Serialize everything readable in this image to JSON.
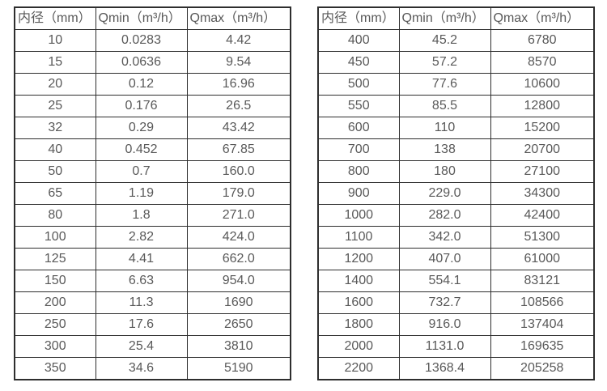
{
  "page": {
    "background_color": "#ffffff",
    "border_color": "#2e2e2e",
    "text_color": "#595959"
  },
  "column_semantics": [
    "diameter",
    "qmin",
    "qmax"
  ],
  "tables": [
    {
      "name": "flow-table-small-diameters",
      "headers": [
        "内径（mm）",
        "Qmin（m³/h）",
        "Qmax（m³/h）"
      ],
      "rows": [
        [
          "10",
          "0.0283",
          "4.42"
        ],
        [
          "15",
          "0.0636",
          "9.54"
        ],
        [
          "20",
          "0.12",
          "16.96"
        ],
        [
          "25",
          "0.176",
          "26.5"
        ],
        [
          "32",
          "0.29",
          "43.42"
        ],
        [
          "40",
          "0.452",
          "67.85"
        ],
        [
          "50",
          "0.7",
          "160.0"
        ],
        [
          "65",
          "1.19",
          "179.0"
        ],
        [
          "80",
          "1.8",
          "271.0"
        ],
        [
          "100",
          "2.82",
          "424.0"
        ],
        [
          "125",
          "4.41",
          "662.0"
        ],
        [
          "150",
          "6.63",
          "954.0"
        ],
        [
          "200",
          "11.3",
          "1690"
        ],
        [
          "250",
          "17.6",
          "2650"
        ],
        [
          "300",
          "25.4",
          "3810"
        ],
        [
          "350",
          "34.6",
          "5190"
        ]
      ]
    },
    {
      "name": "flow-table-large-diameters",
      "headers": [
        "内径（mm）",
        "Qmin（m³/h）",
        "Qmax（m³/h）"
      ],
      "rows": [
        [
          "400",
          "45.2",
          "6780"
        ],
        [
          "450",
          "57.2",
          "8570"
        ],
        [
          "500",
          "77.6",
          "10600"
        ],
        [
          "550",
          "85.5",
          "12800"
        ],
        [
          "600",
          "110",
          "15200"
        ],
        [
          "700",
          "138",
          "20700"
        ],
        [
          "800",
          "180",
          "27100"
        ],
        [
          "900",
          "229.0",
          "34300"
        ],
        [
          "1000",
          "282.0",
          "42400"
        ],
        [
          "1100",
          "342.0",
          "51300"
        ],
        [
          "1200",
          "407.0",
          "61000"
        ],
        [
          "1400",
          "554.1",
          "83121"
        ],
        [
          "1600",
          "732.7",
          "108566"
        ],
        [
          "1800",
          "916.0",
          "137404"
        ],
        [
          "2000",
          "1131.0",
          "169635"
        ],
        [
          "2200",
          "1368.4",
          "205258"
        ]
      ]
    }
  ]
}
